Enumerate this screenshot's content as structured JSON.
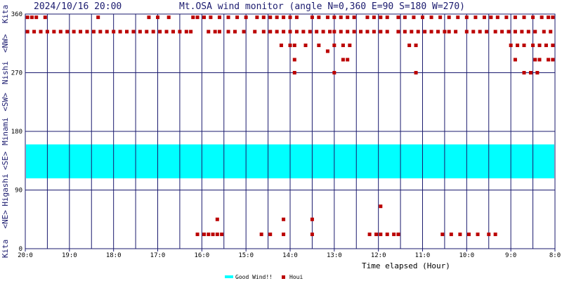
{
  "chart_data": {
    "type": "scatter",
    "datetime": "2024/10/16 20:00",
    "title": "Mt.OSA wind monitor (angle N=0,360 E=90 S=180 W=270)",
    "xlabel": "Time elapsed (Hour)",
    "y_ticks": [
      {
        "value": 0,
        "label": "0"
      },
      {
        "value": 90,
        "label": "90"
      },
      {
        "value": 180,
        "label": "180"
      },
      {
        "value": 270,
        "label": "270"
      },
      {
        "value": 360,
        "label": "360"
      }
    ],
    "ylim": [
      0,
      360
    ],
    "x_ticks": [
      {
        "value": 0,
        "label": "20:0"
      },
      {
        "value": 1,
        "label": "19:0"
      },
      {
        "value": 2,
        "label": "18:0"
      },
      {
        "value": 3,
        "label": "17:0"
      },
      {
        "value": 4,
        "label": "16:0"
      },
      {
        "value": 5,
        "label": "15:0"
      },
      {
        "value": 6,
        "label": "14:0"
      },
      {
        "value": 7,
        "label": "13:0"
      },
      {
        "value": 8,
        "label": "12:0"
      },
      {
        "value": 9,
        "label": "11:0"
      },
      {
        "value": 10,
        "label": "10:0"
      },
      {
        "value": 11,
        "label": "9:0"
      },
      {
        "value": 12,
        "label": "8:0"
      }
    ],
    "xlim": [
      0,
      12
    ],
    "direction_labels": [
      {
        "label": "Kita",
        "value": 360
      },
      {
        "label": "<NW>",
        "value": 315
      },
      {
        "label": "Nishi",
        "value": 270
      },
      {
        "label": "<SW>",
        "value": 225
      },
      {
        "label": "Minami",
        "value": 180
      },
      {
        "label": "<SE>",
        "value": 135
      },
      {
        "label": "Higashi",
        "value": 90
      },
      {
        "label": "<NE>",
        "value": 45
      },
      {
        "label": "Kita",
        "value": 0
      }
    ],
    "good_wind_band": {
      "name": "Good Wind!!",
      "ymin": 108,
      "ymax": 160,
      "color": "#00ffff"
    },
    "series": [
      {
        "name": "Houi",
        "color": "#bb0000",
        "points": [
          [
            0.05,
            355
          ],
          [
            0.15,
            355
          ],
          [
            0.25,
            355
          ],
          [
            0.45,
            355
          ],
          [
            1.65,
            355
          ],
          [
            2.8,
            355
          ],
          [
            3.0,
            355
          ],
          [
            3.25,
            355
          ],
          [
            3.8,
            355
          ],
          [
            3.9,
            355
          ],
          [
            4.05,
            355
          ],
          [
            4.2,
            355
          ],
          [
            4.4,
            355
          ],
          [
            4.6,
            355
          ],
          [
            4.8,
            355
          ],
          [
            5.0,
            355
          ],
          [
            5.25,
            355
          ],
          [
            5.4,
            355
          ],
          [
            5.55,
            355
          ],
          [
            5.7,
            355
          ],
          [
            5.85,
            355
          ],
          [
            6.0,
            355
          ],
          [
            6.15,
            355
          ],
          [
            6.5,
            355
          ],
          [
            6.65,
            355
          ],
          [
            6.85,
            355
          ],
          [
            7.0,
            355
          ],
          [
            7.15,
            355
          ],
          [
            7.3,
            355
          ],
          [
            7.45,
            355
          ],
          [
            7.75,
            355
          ],
          [
            7.9,
            355
          ],
          [
            8.05,
            355
          ],
          [
            8.2,
            355
          ],
          [
            8.45,
            355
          ],
          [
            8.6,
            355
          ],
          [
            8.8,
            355
          ],
          [
            9.0,
            355
          ],
          [
            9.2,
            355
          ],
          [
            9.4,
            355
          ],
          [
            9.6,
            355
          ],
          [
            9.8,
            355
          ],
          [
            10.0,
            355
          ],
          [
            10.2,
            355
          ],
          [
            10.4,
            355
          ],
          [
            10.55,
            355
          ],
          [
            10.7,
            355
          ],
          [
            10.9,
            355
          ],
          [
            11.1,
            355
          ],
          [
            11.3,
            355
          ],
          [
            11.5,
            355
          ],
          [
            11.7,
            355
          ],
          [
            11.85,
            355
          ],
          [
            11.95,
            355
          ],
          [
            0.05,
            333
          ],
          [
            0.2,
            333
          ],
          [
            0.35,
            333
          ],
          [
            0.5,
            333
          ],
          [
            0.65,
            333
          ],
          [
            0.8,
            333
          ],
          [
            0.95,
            333
          ],
          [
            1.1,
            333
          ],
          [
            1.25,
            333
          ],
          [
            1.4,
            333
          ],
          [
            1.55,
            333
          ],
          [
            1.7,
            333
          ],
          [
            1.85,
            333
          ],
          [
            2.0,
            333
          ],
          [
            2.15,
            333
          ],
          [
            2.3,
            333
          ],
          [
            2.45,
            333
          ],
          [
            2.6,
            333
          ],
          [
            2.75,
            333
          ],
          [
            2.9,
            333
          ],
          [
            3.05,
            333
          ],
          [
            3.2,
            333
          ],
          [
            3.35,
            333
          ],
          [
            3.5,
            333
          ],
          [
            3.65,
            333
          ],
          [
            3.75,
            333
          ],
          [
            4.15,
            333
          ],
          [
            4.3,
            333
          ],
          [
            4.4,
            333
          ],
          [
            4.6,
            333
          ],
          [
            4.75,
            333
          ],
          [
            4.95,
            333
          ],
          [
            5.2,
            333
          ],
          [
            5.4,
            333
          ],
          [
            5.55,
            333
          ],
          [
            5.7,
            333
          ],
          [
            5.85,
            333
          ],
          [
            6.0,
            333
          ],
          [
            6.15,
            333
          ],
          [
            6.3,
            333
          ],
          [
            6.45,
            333
          ],
          [
            6.6,
            333
          ],
          [
            6.75,
            333
          ],
          [
            6.9,
            333
          ],
          [
            7.0,
            333
          ],
          [
            7.15,
            333
          ],
          [
            7.3,
            333
          ],
          [
            7.45,
            333
          ],
          [
            7.6,
            333
          ],
          [
            7.75,
            333
          ],
          [
            7.9,
            333
          ],
          [
            8.05,
            333
          ],
          [
            8.2,
            333
          ],
          [
            8.45,
            333
          ],
          [
            8.6,
            333
          ],
          [
            8.75,
            333
          ],
          [
            8.9,
            333
          ],
          [
            9.05,
            333
          ],
          [
            9.2,
            333
          ],
          [
            9.35,
            333
          ],
          [
            9.5,
            333
          ],
          [
            9.6,
            333
          ],
          [
            9.75,
            333
          ],
          [
            10.0,
            333
          ],
          [
            10.15,
            333
          ],
          [
            10.3,
            333
          ],
          [
            10.45,
            333
          ],
          [
            10.65,
            333
          ],
          [
            10.8,
            333
          ],
          [
            10.95,
            333
          ],
          [
            11.1,
            333
          ],
          [
            11.25,
            333
          ],
          [
            11.4,
            333
          ],
          [
            11.55,
            333
          ],
          [
            11.75,
            333
          ],
          [
            11.9,
            333
          ],
          [
            5.8,
            312
          ],
          [
            6.0,
            312
          ],
          [
            6.1,
            312
          ],
          [
            6.35,
            312
          ],
          [
            6.65,
            312
          ],
          [
            7.0,
            312
          ],
          [
            7.2,
            312
          ],
          [
            7.35,
            312
          ],
          [
            8.7,
            312
          ],
          [
            8.85,
            312
          ],
          [
            11.0,
            312
          ],
          [
            11.15,
            312
          ],
          [
            11.3,
            312
          ],
          [
            11.5,
            312
          ],
          [
            11.65,
            312
          ],
          [
            11.8,
            312
          ],
          [
            11.95,
            312
          ],
          [
            6.85,
            303
          ],
          [
            6.1,
            290
          ],
          [
            7.2,
            290
          ],
          [
            7.3,
            290
          ],
          [
            11.1,
            290
          ],
          [
            11.55,
            290
          ],
          [
            11.65,
            290
          ],
          [
            11.85,
            290
          ],
          [
            11.95,
            290
          ],
          [
            6.1,
            270
          ],
          [
            7.0,
            270
          ],
          [
            8.85,
            270
          ],
          [
            11.3,
            270
          ],
          [
            11.45,
            270
          ],
          [
            11.6,
            270
          ],
          [
            8.05,
            65
          ],
          [
            4.35,
            45
          ],
          [
            5.85,
            45
          ],
          [
            6.5,
            45
          ],
          [
            3.9,
            22
          ],
          [
            4.05,
            22
          ],
          [
            4.15,
            22
          ],
          [
            4.25,
            22
          ],
          [
            4.35,
            22
          ],
          [
            4.45,
            22
          ],
          [
            5.35,
            22
          ],
          [
            5.55,
            22
          ],
          [
            5.85,
            22
          ],
          [
            6.5,
            22
          ],
          [
            7.8,
            22
          ],
          [
            7.95,
            22
          ],
          [
            8.05,
            22
          ],
          [
            8.2,
            22
          ],
          [
            8.35,
            22
          ],
          [
            8.45,
            22
          ],
          [
            9.45,
            22
          ],
          [
            9.65,
            22
          ],
          [
            9.85,
            22
          ],
          [
            10.05,
            22
          ],
          [
            10.25,
            22
          ],
          [
            10.5,
            22
          ],
          [
            10.65,
            22
          ]
        ]
      }
    ],
    "legend": [
      {
        "label": "Good Wind!!",
        "color": "#00ffff"
      },
      {
        "label": "Houi",
        "color": "#bb0000"
      }
    ],
    "grid": true,
    "legend_position": "bottom-center"
  }
}
